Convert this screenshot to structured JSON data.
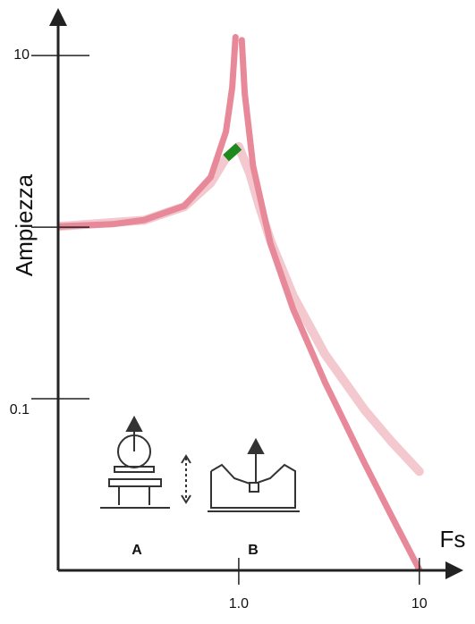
{
  "chart_data": {
    "type": "line",
    "x_label": "Fs",
    "y_label": "Ampiezza",
    "log_scale": true,
    "xlim": [
      0.1,
      16
    ],
    "ylim": [
      0.01,
      17.6
    ],
    "xticks": [
      {
        "value": 1,
        "label": "1.0"
      },
      10
    ],
    "yticks": [
      0.1,
      {
        "value": 1,
        "label": null
      },
      10
    ],
    "series": [
      {
        "name": "B",
        "color": "#f3c9cf",
        "peak_color": "#1e8a1e",
        "x": [
          0.1,
          0.3,
          0.5,
          0.7,
          0.85,
          1,
          1.15,
          1.3,
          1.5,
          2,
          3,
          5,
          7,
          10
        ],
        "values": [
          1.01,
          1.098,
          1.317,
          1.813,
          2.53,
          2.95,
          2.06,
          1.324,
          0.835,
          0.399,
          0.182,
          0.0856,
          0.0564,
          0.0377
        ]
      },
      {
        "name": "A",
        "color": "#e8899a",
        "x": [
          0.1,
          0.2,
          0.3,
          0.5,
          0.7,
          0.85,
          0.92,
          0.96,
          1,
          1.04,
          1.08,
          1.2,
          1.5,
          2,
          3,
          5,
          7,
          10
        ],
        "values": [
          1.01,
          1.04,
          1.1,
          1.33,
          1.96,
          3.6,
          6.51,
          12.8,
          null,
          12.3,
          6.01,
          2.27,
          0.8,
          0.333,
          0.125,
          0.0417,
          0.0208,
          0.0101
        ]
      }
    ]
  }
}
